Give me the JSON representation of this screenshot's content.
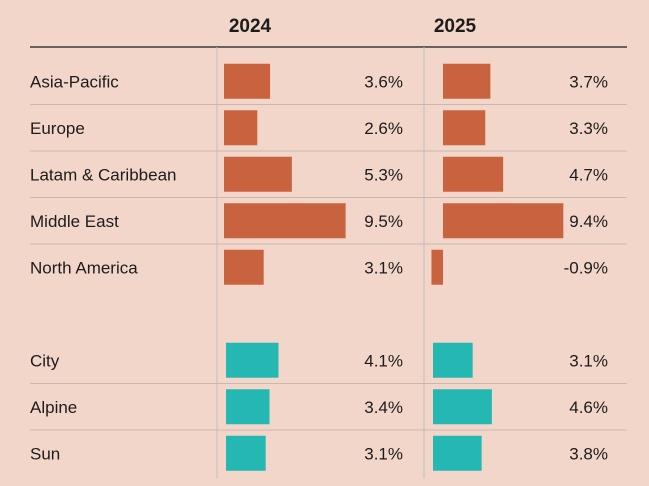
{
  "chart_data": {
    "type": "bar",
    "orientation": "horizontal",
    "columns": [
      "2024",
      "2025"
    ],
    "groups": [
      {
        "color": "#c8623f",
        "rows": [
          {
            "label": "Asia-Pacific",
            "values": [
              3.6,
              3.7
            ],
            "texts": [
              "3.6%",
              "3.7%"
            ]
          },
          {
            "label": "Europe",
            "values": [
              2.6,
              3.3
            ],
            "texts": [
              "2.6%",
              "3.3%"
            ]
          },
          {
            "label": "Latam & Caribbean",
            "values": [
              5.3,
              4.7
            ],
            "texts": [
              "5.3%",
              "4.7%"
            ]
          },
          {
            "label": "Middle East",
            "values": [
              9.5,
              9.4
            ],
            "texts": [
              "9.5%",
              "9.4%"
            ]
          },
          {
            "label": "North America",
            "values": [
              3.1,
              -0.9
            ],
            "texts": [
              "3.1%",
              "-0.9%"
            ]
          }
        ]
      },
      {
        "color": "#25b8b2",
        "rows": [
          {
            "label": "City",
            "values": [
              4.1,
              3.1
            ],
            "texts": [
              "4.1%",
              "3.1%"
            ]
          },
          {
            "label": "Alpine",
            "values": [
              3.4,
              4.6
            ],
            "texts": [
              "3.4%",
              "4.6%"
            ]
          },
          {
            "label": "Sun",
            "values": [
              3.1,
              3.8
            ],
            "texts": [
              "3.1%",
              "3.8%"
            ]
          }
        ]
      }
    ],
    "grid": true
  }
}
